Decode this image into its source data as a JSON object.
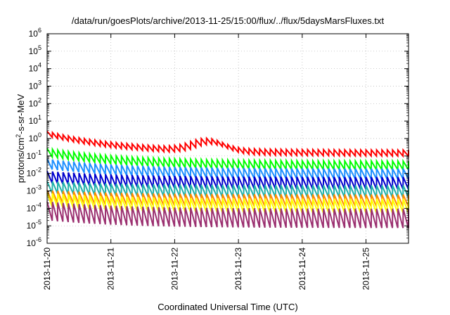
{
  "chart_data": {
    "type": "line",
    "title": "/data/run/goesPlots/archive/2013-11-25/15:00/flux/../flux/5daysMarsFluxes.txt",
    "xlabel": "Coordinated Universal Time (UTC)",
    "ylabel_parts": {
      "base": "protons/cm",
      "sup": "2",
      "rest": "-s-sr-MeV"
    },
    "y_scale": "log",
    "ylim": [
      1e-06,
      1000000.0
    ],
    "y_tick_exponents": [
      -6,
      -5,
      -4,
      -3,
      -2,
      -1,
      0,
      1,
      2,
      3,
      4,
      5,
      6
    ],
    "y_tick_base": "10",
    "x_range": [
      "2013-11-20",
      "2013-11-25 16:00"
    ],
    "x_tick_labels": [
      "2013-11-20",
      "2013-11-21",
      "2013-11-22",
      "2013-11-23",
      "2013-11-24",
      "2013-11-25"
    ],
    "grid": true,
    "legend": "none",
    "series": [
      {
        "color": "#ff0000",
        "approx_level": 0.15,
        "peak_level": 1.8,
        "tooth_amplitude_decades": 0.35
      },
      {
        "color": "#00ff00",
        "approx_level": 0.03,
        "peak_level": 0.25,
        "tooth_amplitude_decades": 0.5
      },
      {
        "color": "#1e90ff",
        "approx_level": 0.01,
        "peak_level": 0.05,
        "tooth_amplitude_decades": 0.6
      },
      {
        "color": "#0000cd",
        "approx_level": 0.003,
        "peak_level": 0.008,
        "tooth_amplitude_decades": 0.7
      },
      {
        "color": "#20b2aa",
        "approx_level": 0.001,
        "peak_level": 0.002,
        "tooth_amplitude_decades": 0.7
      },
      {
        "color": "#ff8c00",
        "approx_level": 0.0003,
        "peak_level": 0.0006,
        "tooth_amplitude_decades": 0.7
      },
      {
        "color": "#ffff00",
        "approx_level": 0.00015,
        "peak_level": 0.0004,
        "tooth_amplitude_decades": 0.8
      },
      {
        "color": "#9b3070",
        "approx_level": 3e-05,
        "peak_level": 0.0001,
        "tooth_amplitude_decades": 1.1
      }
    ]
  }
}
